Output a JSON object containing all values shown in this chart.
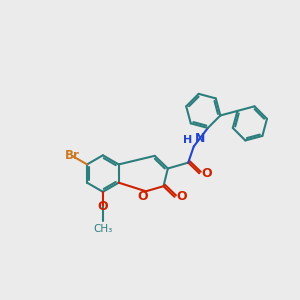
{
  "bg_color": "#ebebeb",
  "bond_color": "#2d7d7d",
  "bond_width": 1.5,
  "atom_colors": {
    "O_red": "#cc2200",
    "N_blue": "#2244cc",
    "Br_brown": "#cc7722",
    "C_default": "#2d7d7d"
  },
  "ring_r": 0.62,
  "canvas_xlim": [
    0,
    10
  ],
  "canvas_ylim": [
    0,
    10
  ]
}
